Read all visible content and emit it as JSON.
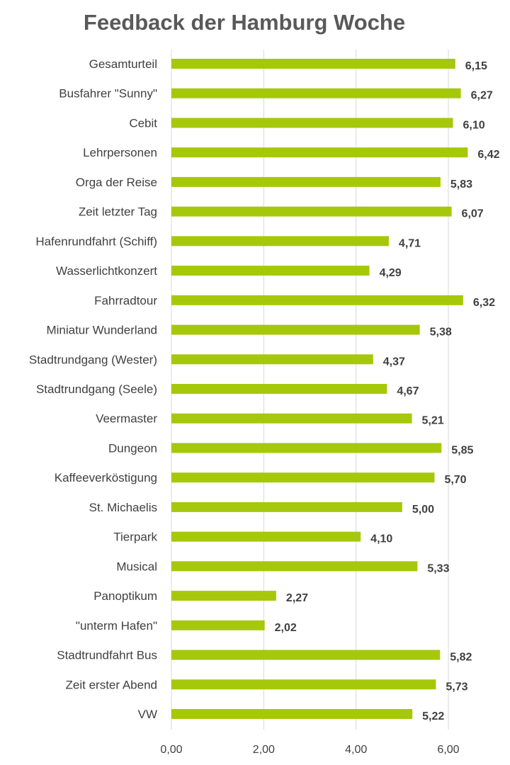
{
  "chart_data": {
    "type": "bar",
    "orientation": "horizontal",
    "title": "Feedback der Hamburg Woche",
    "categories": [
      "Gesamturteil",
      "Busfahrer \"Sunny\"",
      "Cebit",
      "Lehrpersonen",
      "Orga der Reise",
      "Zeit letzter Tag",
      "Hafenrundfahrt (Schiff)",
      "Wasserlichtkonzert",
      "Fahrradtour",
      "Miniatur Wunderland",
      "Stadtrundgang (Wester)",
      "Stadtrundgang (Seele)",
      "Veermaster",
      "Dungeon",
      "Kaffeeverköstigung",
      "St. Michaelis",
      "Tierpark",
      "Musical",
      "Panoptikum",
      "\"unterm Hafen\"",
      "Stadtrundfahrt Bus",
      "Zeit erster Abend",
      "VW"
    ],
    "values": [
      6.15,
      6.27,
      6.1,
      6.42,
      5.83,
      6.07,
      4.71,
      4.29,
      6.32,
      5.38,
      4.37,
      4.67,
      5.21,
      5.85,
      5.7,
      5.0,
      4.1,
      5.33,
      2.27,
      2.02,
      5.82,
      5.73,
      5.22
    ],
    "value_labels": [
      "6,15",
      "6,27",
      "6,10",
      "6,42",
      "5,83",
      "6,07",
      "4,71",
      "4,29",
      "6,32",
      "5,38",
      "4,37",
      "4,67",
      "5,21",
      "5,85",
      "5,70",
      "5,00",
      "4,10",
      "5,33",
      "2,27",
      "2,02",
      "5,82",
      "5,73",
      "5,22"
    ],
    "xlim": [
      0,
      6
    ],
    "x_ticks": [
      0,
      2,
      4,
      6
    ],
    "x_tick_labels": [
      "0,00",
      "2,00",
      "4,00",
      "6,00"
    ],
    "grid": "vertical",
    "legend": "none",
    "bar_color": "#a6c80a"
  }
}
